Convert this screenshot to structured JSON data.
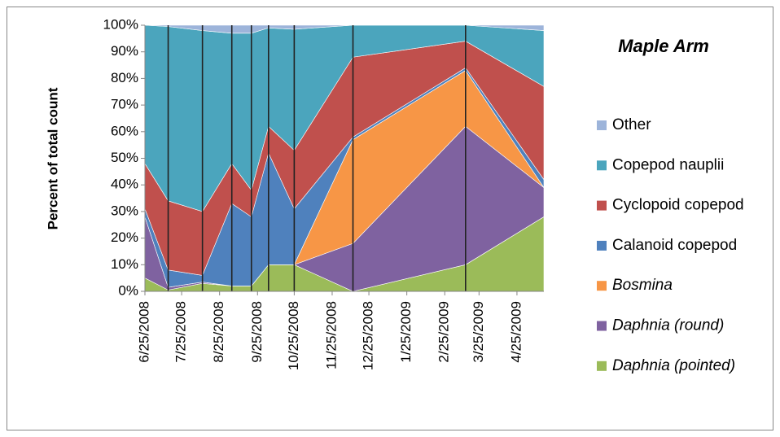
{
  "chart_data": {
    "type": "stacked-area",
    "title": "Maple Arm",
    "y_label": "Percent of total count",
    "x": [
      "6/25/2008",
      "7/14/2008",
      "8/11/2008",
      "9/4/2008",
      "9/20/2008",
      "10/4/2008",
      "10/25/2008",
      "12/12/2008",
      "3/14/2009",
      "5/17/2009"
    ],
    "xlim": [
      "6/25/2008",
      "5/17/2009"
    ],
    "xticks": [
      "6/25/2008",
      "7/25/2008",
      "8/25/2008",
      "9/25/2008",
      "10/25/2008",
      "11/25/2008",
      "12/25/2008",
      "1/25/2009",
      "2/25/2009",
      "3/25/2009",
      "4/25/2009"
    ],
    "ylim": [
      0,
      100
    ],
    "yticks": [
      {
        "value": 0,
        "label": "0%"
      },
      {
        "value": 10,
        "label": "10%"
      },
      {
        "value": 20,
        "label": "20%"
      },
      {
        "value": 30,
        "label": "30%"
      },
      {
        "value": 40,
        "label": "40%"
      },
      {
        "value": 50,
        "label": "50%"
      },
      {
        "value": 60,
        "label": "60%"
      },
      {
        "value": 70,
        "label": "70%"
      },
      {
        "value": 80,
        "label": "80%"
      },
      {
        "value": 90,
        "label": "90%"
      },
      {
        "value": 100,
        "label": "100%"
      }
    ],
    "sample_lines": true,
    "legend": "right",
    "series": [
      {
        "name": "Other",
        "color": "#9db4da",
        "italic": false,
        "values": [
          0,
          0.5,
          2,
          3,
          3,
          1,
          1.5,
          0,
          0,
          2
        ]
      },
      {
        "name": "Copepod nauplii",
        "color": "#4ba5bd",
        "italic": false,
        "values": [
          52,
          65.5,
          68,
          49,
          59,
          37,
          45.5,
          12,
          6,
          21
        ]
      },
      {
        "name": "Cyclopoid copepod",
        "color": "#c0504d",
        "italic": false,
        "values": [
          17,
          26,
          24,
          15,
          10,
          10,
          22,
          30,
          10,
          35
        ]
      },
      {
        "name": "Calanoid copepod",
        "color": "#4f81bd",
        "italic": false,
        "values": [
          3,
          6.5,
          2.5,
          31,
          26,
          42,
          21,
          1,
          1,
          3
        ]
      },
      {
        "name": "Bosmina",
        "color": "#f79646",
        "italic": true,
        "values": [
          0,
          0,
          0,
          0,
          0,
          0,
          0,
          39,
          21,
          0
        ]
      },
      {
        "name": "Daphnia (round)",
        "color": "#7f62a0",
        "italic": true,
        "values": [
          23,
          1,
          0.5,
          0,
          0,
          0,
          0,
          18,
          52,
          11
        ]
      },
      {
        "name": "Daphnia (pointed)",
        "color": "#9bbb59",
        "italic": true,
        "values": [
          5,
          0.5,
          3,
          2,
          2,
          10,
          10,
          0,
          10,
          28
        ]
      }
    ]
  }
}
